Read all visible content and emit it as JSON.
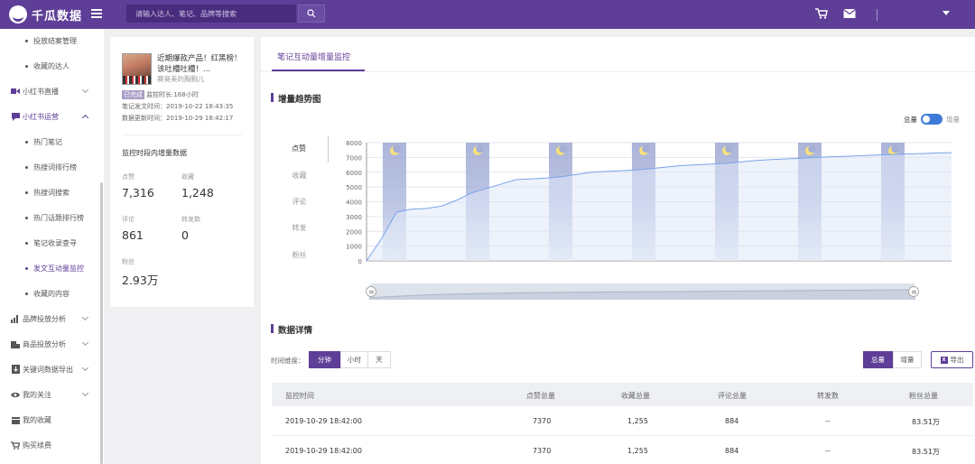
{
  "header": {
    "logo_text": "千瓜数据",
    "search_placeholder": "请输入达人、笔记、品牌等搜索"
  },
  "sidebar": {
    "items": [
      {
        "label": "投放结案管理"
      },
      {
        "label": "收藏的达人"
      },
      {
        "label": "小红书直播"
      },
      {
        "label": "小红书运营"
      },
      {
        "label": "热门笔记"
      },
      {
        "label": "热搜词排行榜"
      },
      {
        "label": "热搜词搜索"
      },
      {
        "label": "热门话题排行榜"
      },
      {
        "label": "笔记收录查寻"
      },
      {
        "label": "发文互动量监控"
      },
      {
        "label": "收藏的内容"
      },
      {
        "label": "品牌投放分析"
      },
      {
        "label": "商品投放分析"
      },
      {
        "label": "关键词数据导出"
      },
      {
        "label": "我的关注"
      },
      {
        "label": "我的收藏"
      },
      {
        "label": "购买续费"
      }
    ]
  },
  "note": {
    "title": "近期爆款产品！红黑榜！该吐槽吐槽！...",
    "author": "赛臭美的胸胸儿",
    "status": "已完成",
    "duration": "监控时长:168小时",
    "published": "笔记发文时间：2019-10-22 18:43:35",
    "updated": "数据更新时间：2019-10-29 18:42:17",
    "section_title": "监控时段内增量数据",
    "stats": [
      {
        "label": "点赞",
        "value": "7,316"
      },
      {
        "label": "收藏",
        "value": "1,248"
      },
      {
        "label": "评论",
        "value": "861"
      },
      {
        "label": "转发数",
        "value": "0"
      },
      {
        "label": "粉丝",
        "value": "2.93万"
      }
    ]
  },
  "main": {
    "tab": "笔记互动量增量监控",
    "trend_title": "增量趋势图",
    "toggle_left": "总量",
    "toggle_right": "增量",
    "metric_tabs": [
      "点赞",
      "收藏",
      "评论",
      "转发",
      "粉丝"
    ],
    "detail_title": "数据详情",
    "granularity_label": "时间维度：",
    "granularity_options": [
      "分钟",
      "小时",
      "天"
    ],
    "mode_options": [
      "总量",
      "增量"
    ],
    "export_label": "导出",
    "table": {
      "columns": [
        "监控时间",
        "点赞总量",
        "收藏总量",
        "评论总量",
        "转发数",
        "粉丝总量"
      ],
      "rows": [
        [
          "2019-10-29 18:42:00",
          "7370",
          "1,255",
          "884",
          "--",
          "83.51万"
        ],
        [
          "2019-10-29 18:42:00",
          "7370",
          "1,255",
          "884",
          "--",
          "83.51万"
        ]
      ]
    }
  },
  "chart_data": {
    "type": "area",
    "series": [
      {
        "values": [
          0,
          1500,
          3300,
          3500,
          3550,
          3700,
          4100,
          4600,
          4900,
          5200,
          5500,
          5550,
          5600,
          5700,
          5850,
          6000,
          6050,
          6100,
          6150,
          6250,
          6350,
          6450,
          6500,
          6550,
          6600,
          6700,
          6800,
          6850,
          6900,
          6950,
          7000,
          7050,
          7080,
          7120,
          7160,
          7200,
          7230,
          7260,
          7300,
          7320
        ]
      }
    ],
    "yticks": [
      "0",
      "1000",
      "2000",
      "3000",
      "4000",
      "5000",
      "6000",
      "7000",
      "8000"
    ],
    "ylim": [
      0,
      8000
    ],
    "night_band_icon": "moon-icon",
    "night_band_count": 7,
    "colors": {
      "line": "#7aa3e8",
      "fill": "#dfe7f8",
      "band": "#9ea7d3"
    }
  }
}
